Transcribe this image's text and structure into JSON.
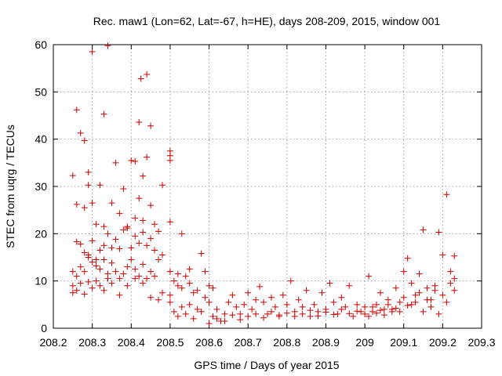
{
  "chart_data": {
    "type": "scatter",
    "title": "Rec. maw1 (Lon=62, Lat=-67, h=HE), days 208-209, 2015, window 001",
    "xlabel": "GPS time / Days of year 2015",
    "ylabel": "STEC from uqrg / TECUs",
    "xlim": [
      208.2,
      209.3
    ],
    "ylim": [
      0,
      60
    ],
    "grid": true,
    "marker": "+",
    "color": "#cc0000",
    "x_ticks": [
      "208.2",
      "208.3",
      "208.4",
      "208.5",
      "208.6",
      "208.7",
      "208.8",
      "208.9",
      "209",
      "209.1",
      "209.2",
      "209.3"
    ],
    "y_ticks": [
      "0",
      "10",
      "20",
      "30",
      "40",
      "50",
      "60"
    ],
    "series": [
      {
        "points": [
          [
            208.25,
            32.3
          ],
          [
            208.26,
            46.2
          ],
          [
            208.27,
            41.3
          ],
          [
            208.28,
            39.7
          ],
          [
            208.29,
            33.0
          ],
          [
            208.3,
            58.5
          ],
          [
            208.32,
            30.3
          ],
          [
            208.33,
            45.3
          ],
          [
            208.34,
            59.8
          ],
          [
            208.36,
            35.0
          ],
          [
            208.38,
            29.5
          ],
          [
            208.4,
            35.5
          ],
          [
            208.41,
            35.3
          ],
          [
            208.42,
            43.6
          ],
          [
            208.425,
            52.8
          ],
          [
            208.44,
            53.7
          ],
          [
            208.45,
            42.8
          ],
          [
            208.44,
            36.2
          ],
          [
            208.43,
            32.2
          ],
          [
            208.48,
            30.3
          ],
          [
            208.5,
            37.5
          ],
          [
            208.5,
            36.5
          ],
          [
            208.5,
            35.5
          ],
          [
            208.26,
            26.2
          ],
          [
            208.28,
            25.5
          ],
          [
            208.29,
            30.3
          ],
          [
            208.3,
            26.5
          ],
          [
            208.31,
            22.0
          ],
          [
            208.33,
            21.5
          ],
          [
            208.35,
            26.5
          ],
          [
            208.37,
            24.3
          ],
          [
            208.39,
            21.5
          ],
          [
            208.41,
            23.3
          ],
          [
            208.42,
            27.5
          ],
          [
            208.43,
            22.8
          ],
          [
            208.45,
            26.0
          ],
          [
            208.46,
            22.0
          ],
          [
            208.47,
            20.5
          ],
          [
            208.5,
            22.5
          ],
          [
            208.53,
            20.0
          ],
          [
            208.25,
            12.0
          ],
          [
            208.26,
            18.3
          ],
          [
            208.27,
            17.8
          ],
          [
            208.28,
            16.0
          ],
          [
            208.29,
            15.5
          ],
          [
            208.3,
            18.5
          ],
          [
            208.31,
            14.5
          ],
          [
            208.32,
            16.5
          ],
          [
            208.33,
            17.5
          ],
          [
            208.34,
            20.0
          ],
          [
            208.35,
            17.0
          ],
          [
            208.36,
            18.8
          ],
          [
            208.37,
            16.8
          ],
          [
            208.38,
            20.8
          ],
          [
            208.39,
            21.2
          ],
          [
            208.4,
            17.0
          ],
          [
            208.41,
            19.5
          ],
          [
            208.42,
            18.0
          ],
          [
            208.43,
            20.3
          ],
          [
            208.44,
            17.5
          ],
          [
            208.45,
            19.0
          ],
          [
            208.46,
            16.5
          ],
          [
            208.47,
            14.5
          ],
          [
            208.48,
            15.5
          ],
          [
            208.25,
            9.0
          ],
          [
            208.26,
            11.0
          ],
          [
            208.27,
            13.0
          ],
          [
            208.28,
            12.0
          ],
          [
            208.29,
            15.0
          ],
          [
            208.3,
            14.0
          ],
          [
            208.31,
            13.2
          ],
          [
            208.32,
            12.5
          ],
          [
            208.33,
            14.5
          ],
          [
            208.34,
            11.5
          ],
          [
            208.35,
            13.8
          ],
          [
            208.36,
            12.0
          ],
          [
            208.37,
            10.5
          ],
          [
            208.38,
            11.5
          ],
          [
            208.39,
            13.0
          ],
          [
            208.4,
            14.5
          ],
          [
            208.41,
            12.5
          ],
          [
            208.42,
            11.0
          ],
          [
            208.43,
            13.5
          ],
          [
            208.44,
            10.5
          ],
          [
            208.45,
            12.0
          ],
          [
            208.46,
            11.0
          ],
          [
            208.25,
            7.5
          ],
          [
            208.26,
            8.0
          ],
          [
            208.27,
            9.5
          ],
          [
            208.28,
            7.2
          ],
          [
            208.29,
            9.8
          ],
          [
            208.3,
            8.5
          ],
          [
            208.31,
            10.0
          ],
          [
            208.32,
            9.0
          ],
          [
            208.33,
            8.0
          ],
          [
            208.34,
            10.5
          ],
          [
            208.35,
            9.5
          ],
          [
            208.37,
            7.0
          ],
          [
            208.39,
            9.0
          ],
          [
            208.41,
            10.5
          ],
          [
            208.43,
            9.5
          ],
          [
            208.45,
            6.5
          ],
          [
            208.47,
            6.0
          ],
          [
            208.48,
            7.5
          ],
          [
            208.5,
            7.0
          ],
          [
            208.5,
            12.0
          ],
          [
            208.51,
            10.0
          ],
          [
            208.52,
            9.0
          ],
          [
            208.53,
            8.5
          ],
          [
            208.54,
            11.0
          ],
          [
            208.55,
            9.5
          ],
          [
            208.56,
            7.5
          ],
          [
            208.57,
            8.0
          ],
          [
            208.58,
            15.8
          ],
          [
            208.59,
            12.0
          ],
          [
            208.6,
            9.0
          ],
          [
            208.61,
            8.5
          ],
          [
            208.55,
            12.5
          ],
          [
            208.52,
            11.5
          ],
          [
            208.5,
            5.5
          ],
          [
            208.51,
            3.5
          ],
          [
            208.52,
            2.5
          ],
          [
            208.53,
            4.5
          ],
          [
            208.54,
            3.0
          ],
          [
            208.55,
            5.0
          ],
          [
            208.56,
            2.0
          ],
          [
            208.57,
            4.0
          ],
          [
            208.58,
            3.5
          ],
          [
            208.59,
            6.5
          ],
          [
            208.6,
            5.5
          ],
          [
            208.61,
            2.5
          ],
          [
            208.62,
            4.0
          ],
          [
            208.63,
            1.5
          ],
          [
            208.64,
            3.0
          ],
          [
            208.65,
            5.5
          ],
          [
            208.66,
            7.0
          ],
          [
            208.67,
            4.5
          ],
          [
            208.68,
            3.0
          ],
          [
            208.69,
            5.0
          ],
          [
            208.7,
            7.5
          ],
          [
            208.71,
            4.0
          ],
          [
            208.72,
            6.0
          ],
          [
            208.73,
            8.8
          ],
          [
            208.74,
            5.5
          ],
          [
            208.75,
            3.0
          ],
          [
            208.76,
            6.5
          ],
          [
            208.77,
            4.5
          ],
          [
            208.78,
            2.5
          ],
          [
            208.79,
            7.0
          ],
          [
            208.8,
            5.0
          ],
          [
            208.81,
            10.0
          ],
          [
            208.82,
            3.5
          ],
          [
            208.83,
            6.0
          ],
          [
            208.84,
            4.5
          ],
          [
            208.85,
            8.0
          ],
          [
            208.86,
            2.5
          ],
          [
            208.87,
            5.0
          ],
          [
            208.88,
            3.5
          ],
          [
            208.89,
            7.5
          ],
          [
            208.9,
            4.0
          ],
          [
            208.91,
            9.5
          ],
          [
            208.92,
            5.5
          ],
          [
            208.93,
            3.0
          ],
          [
            208.94,
            6.5
          ],
          [
            208.95,
            4.5
          ],
          [
            208.96,
            9.0
          ],
          [
            208.97,
            2.5
          ],
          [
            208.98,
            5.0
          ],
          [
            208.99,
            3.5
          ],
          [
            208.6,
            1.0
          ],
          [
            208.62,
            2.0
          ],
          [
            208.64,
            1.5
          ],
          [
            208.66,
            2.8
          ],
          [
            208.68,
            1.8
          ],
          [
            208.7,
            2.5
          ],
          [
            208.72,
            3.0
          ],
          [
            208.74,
            2.2
          ],
          [
            208.76,
            3.5
          ],
          [
            208.78,
            2.8
          ],
          [
            208.8,
            3.2
          ],
          [
            208.82,
            2.5
          ],
          [
            208.84,
            3.0
          ],
          [
            208.86,
            3.8
          ],
          [
            208.88,
            2.6
          ],
          [
            208.9,
            3.4
          ],
          [
            208.92,
            2.9
          ],
          [
            208.94,
            4.0
          ],
          [
            208.96,
            3.1
          ],
          [
            208.98,
            3.6
          ],
          [
            209.0,
            4.5
          ],
          [
            209.01,
            11.0
          ],
          [
            209.02,
            3.5
          ],
          [
            209.03,
            5.0
          ],
          [
            209.04,
            7.5
          ],
          [
            209.05,
            4.0
          ],
          [
            209.06,
            6.0
          ],
          [
            209.07,
            3.5
          ],
          [
            209.08,
            8.5
          ],
          [
            209.09,
            5.5
          ],
          [
            209.1,
            12.0
          ],
          [
            209.11,
            14.8
          ],
          [
            209.12,
            9.5
          ],
          [
            209.13,
            7.0
          ],
          [
            209.14,
            11.5
          ],
          [
            209.15,
            20.8
          ],
          [
            209.16,
            8.5
          ],
          [
            209.17,
            6.0
          ],
          [
            209.18,
            9.0
          ],
          [
            209.19,
            20.3
          ],
          [
            209.2,
            15.5
          ],
          [
            209.21,
            28.3
          ],
          [
            209.22,
            12.0
          ],
          [
            209.23,
            15.3
          ],
          [
            209.0,
            3.0
          ],
          [
            209.02,
            4.5
          ],
          [
            209.04,
            3.8
          ],
          [
            209.06,
            5.0
          ],
          [
            209.08,
            4.2
          ],
          [
            209.1,
            6.5
          ],
          [
            209.12,
            5.0
          ],
          [
            209.14,
            7.5
          ],
          [
            209.16,
            6.0
          ],
          [
            209.18,
            8.0
          ],
          [
            209.2,
            7.0
          ],
          [
            209.22,
            9.5
          ],
          [
            209.23,
            10.5
          ],
          [
            209.01,
            2.5
          ],
          [
            209.03,
            3.2
          ],
          [
            209.05,
            2.8
          ],
          [
            209.07,
            4.0
          ],
          [
            209.09,
            3.5
          ],
          [
            209.11,
            4.8
          ],
          [
            209.13,
            5.5
          ],
          [
            209.15,
            3.5
          ],
          [
            209.17,
            4.5
          ],
          [
            209.19,
            3.0
          ],
          [
            209.21,
            5.5
          ],
          [
            209.23,
            8.0
          ]
        ]
      }
    ]
  }
}
